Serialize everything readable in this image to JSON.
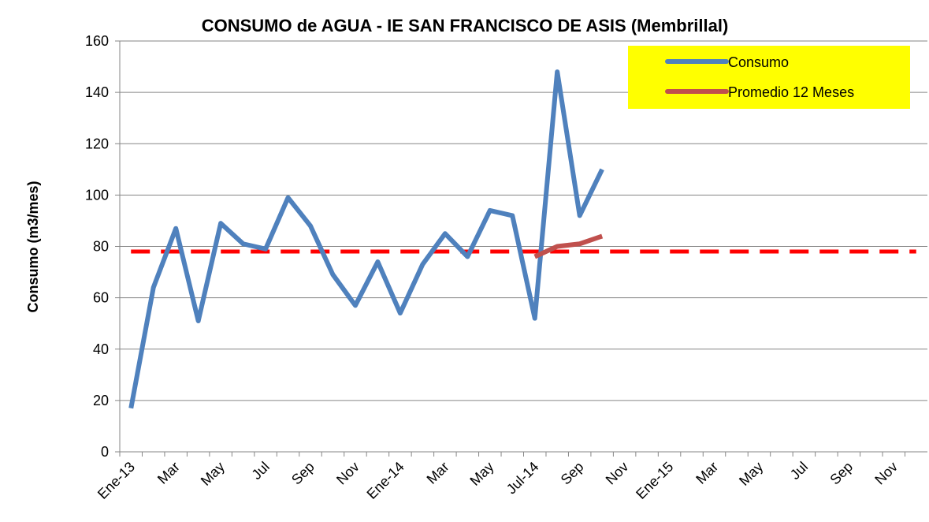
{
  "chart_data": {
    "type": "line",
    "title": "CONSUMO de AGUA - IE  SAN FRANCISCO DE ASIS (Membrillal)",
    "y_label": "Consumo (m3/mes)",
    "categories": [
      "Ene-13",
      null,
      "Mar",
      null,
      "May",
      null,
      "Jul",
      null,
      "Sep",
      null,
      "Nov",
      null,
      "Ene-14",
      null,
      "Mar",
      null,
      "May",
      null,
      "Jul-14",
      null,
      "Sep",
      null,
      "Nov",
      null,
      "Ene-15",
      null,
      "Mar",
      null,
      "May",
      null,
      "Jul",
      null,
      "Sep",
      null,
      "Nov",
      null
    ],
    "series": [
      {
        "name": "Consumo",
        "color": "#4f81bd",
        "values": [
          17,
          64,
          87,
          51,
          89,
          81,
          79,
          99,
          88,
          69,
          57,
          74,
          54,
          73,
          85,
          76,
          94,
          92,
          52,
          148,
          92,
          110,
          null,
          null,
          null,
          null,
          null,
          null,
          null,
          null,
          null,
          null,
          null,
          null,
          null,
          null
        ]
      },
      {
        "name": "Promedio 12 Meses",
        "color": "#c0504d",
        "values": [
          null,
          null,
          null,
          null,
          null,
          null,
          null,
          null,
          null,
          null,
          null,
          null,
          null,
          null,
          null,
          null,
          null,
          null,
          76,
          80,
          81,
          84,
          null,
          null,
          null,
          null,
          null,
          null,
          null,
          null,
          null,
          null,
          null,
          null,
          null,
          null
        ]
      }
    ],
    "reference_line": {
      "value": 78,
      "color": "#ff0000",
      "style": "dashed"
    },
    "ylim": [
      0,
      160
    ],
    "yticks": [
      0,
      20,
      40,
      60,
      80,
      100,
      120,
      140,
      160
    ],
    "grid": true,
    "legend": "top-right",
    "legend_background": "#ffff00"
  }
}
